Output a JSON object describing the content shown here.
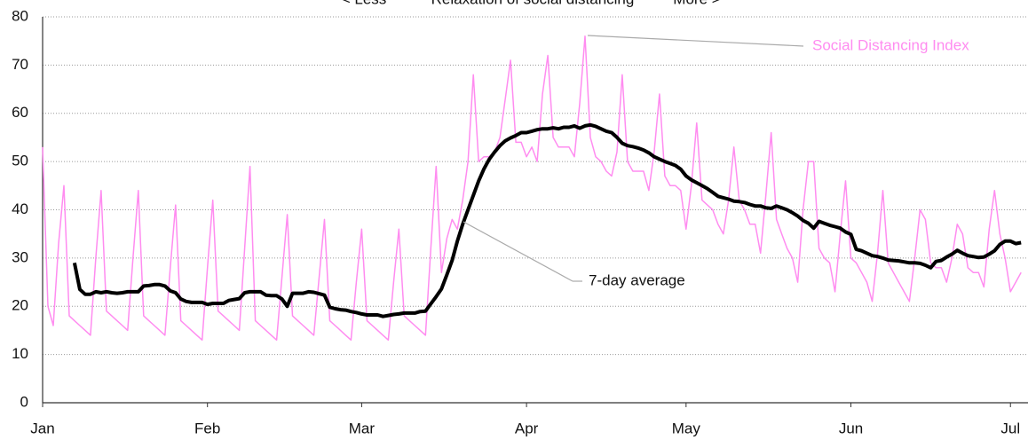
{
  "chart_data": {
    "type": "line",
    "header_annotations": [
      "< Less",
      "Relaxation of social distancing",
      "More >"
    ],
    "x": [
      0,
      1,
      2,
      3,
      4,
      5,
      6,
      7,
      8,
      9,
      10,
      11,
      12,
      13,
      14,
      15,
      16,
      17,
      18,
      19,
      20,
      21,
      22,
      23,
      24,
      25,
      26,
      27,
      28,
      29,
      30,
      31,
      32,
      33,
      34,
      35,
      36,
      37,
      38,
      39,
      40,
      41,
      42,
      43,
      44,
      45,
      46,
      47,
      48,
      49,
      50,
      51,
      52,
      53,
      54,
      55,
      56,
      57,
      58,
      59,
      60,
      61,
      62,
      63,
      64,
      65,
      66,
      67,
      68,
      69,
      70,
      71,
      72,
      73,
      74,
      75,
      76,
      77,
      78,
      79,
      80,
      81,
      82,
      83,
      84,
      85,
      86,
      87,
      88,
      89,
      90,
      91,
      92,
      93,
      94,
      95,
      96,
      97,
      98,
      99,
      100,
      101,
      102,
      103,
      104,
      105,
      106,
      107,
      108,
      109,
      110,
      111,
      112,
      113,
      114,
      115,
      116,
      117,
      118,
      119,
      120,
      121,
      122,
      123,
      124,
      125,
      126,
      127,
      128,
      129,
      130,
      131,
      132,
      133,
      134,
      135,
      136,
      137,
      138,
      139,
      140,
      141,
      142,
      143,
      144,
      145,
      146,
      147,
      148,
      149,
      150,
      151,
      152,
      153,
      154,
      155,
      156,
      157,
      158,
      159,
      160,
      161,
      162,
      163,
      164,
      165,
      166,
      167,
      168,
      169,
      170,
      171,
      172,
      173,
      174,
      175,
      176,
      177,
      178,
      179,
      180,
      181,
      182,
      183,
      184
    ],
    "series": [
      {
        "name": "Social Distancing Index",
        "color": "#ff8cf0",
        "width": 1.5,
        "values": [
          53,
          20,
          16,
          33,
          45,
          18,
          17,
          16,
          15,
          14,
          30,
          44,
          19,
          18,
          17,
          16,
          15,
          30,
          44,
          18,
          17,
          16,
          15,
          14,
          28,
          41,
          17,
          16,
          15,
          14,
          13,
          28,
          42,
          19,
          18,
          17,
          16,
          15,
          32,
          49,
          17,
          16,
          15,
          14,
          13,
          26,
          39,
          18,
          17,
          16,
          15,
          14,
          26,
          38,
          17,
          16,
          15,
          14,
          13,
          25,
          36,
          17,
          16,
          15,
          14,
          13,
          25,
          36,
          18,
          17,
          16,
          15,
          14,
          32,
          49,
          27,
          34,
          38,
          36,
          42,
          50,
          68,
          50,
          51,
          51,
          52,
          55,
          63,
          71,
          54,
          54,
          51,
          53,
          50,
          64,
          72,
          55,
          53,
          53,
          53,
          51,
          62,
          76,
          55,
          51,
          50,
          48,
          47,
          52,
          68,
          50,
          48,
          48,
          48,
          44,
          52,
          64,
          47,
          45,
          45,
          44,
          36,
          45,
          58,
          42,
          41,
          40,
          37,
          35,
          42,
          53,
          42,
          40,
          37,
          37,
          31,
          43,
          56,
          38,
          35,
          32,
          30,
          25,
          40,
          50,
          50,
          32,
          30,
          29,
          23,
          35,
          46,
          30,
          29,
          27,
          25,
          21,
          31,
          44,
          29,
          27,
          25,
          23,
          21,
          30,
          40,
          38,
          29,
          28,
          28,
          25,
          30,
          37,
          35,
          28,
          27,
          27,
          24,
          36,
          44,
          35,
          30,
          23,
          25,
          27
        ]
      },
      {
        "name": "7-day average",
        "color": "#000000",
        "width": 4,
        "values": [
          null,
          null,
          null,
          null,
          null,
          null,
          29,
          23.5,
          22.5,
          22.5,
          23,
          22.8,
          23,
          22.8,
          22.7,
          22.8,
          23,
          23,
          23,
          24.2,
          24.3,
          24.5,
          24.5,
          24.2,
          23.2,
          22.8,
          21.5,
          21,
          20.8,
          20.8,
          20.8,
          20.4,
          20.6,
          20.6,
          20.6,
          21.2,
          21.4,
          21.6,
          22.8,
          23,
          23,
          23,
          22.3,
          22.2,
          22.2,
          21.5,
          20,
          22.7,
          22.7,
          22.7,
          23,
          22.9,
          22.6,
          22.3,
          19.8,
          19.5,
          19.3,
          19.2,
          18.9,
          18.7,
          18.4,
          18.2,
          18.2,
          18.2,
          17.9,
          18.1,
          18.3,
          18.4,
          18.6,
          18.6,
          18.6,
          18.9,
          19,
          20.5,
          22,
          23.6,
          26.5,
          29.5,
          33.5,
          37,
          40,
          43,
          46,
          48.5,
          50.5,
          52,
          53.3,
          54.3,
          54.9,
          55.4,
          56,
          56,
          56.3,
          56.6,
          56.8,
          56.8,
          57,
          56.8,
          57.1,
          57.1,
          57.4,
          56.9,
          57.4,
          57.6,
          57.3,
          56.8,
          56.3,
          56,
          55,
          53.8,
          53.3,
          53.1,
          52.8,
          52.4,
          51.8,
          51,
          50.5,
          50,
          49.6,
          49.2,
          48.4,
          47,
          46.2,
          45.6,
          45,
          44.4,
          43.6,
          42.8,
          42.5,
          42.2,
          41.8,
          41.7,
          41.5,
          41.1,
          40.8,
          40.8,
          40.4,
          40.3,
          40.8,
          40.4,
          40,
          39.4,
          38.7,
          37.8,
          37.2,
          36.2,
          37.6,
          37.2,
          36.8,
          36.5,
          36.2,
          35.4,
          34.9,
          31.8,
          31.5,
          31,
          30.5,
          30.3,
          30,
          29.6,
          29.5,
          29.4,
          29.2,
          29,
          29,
          28.9,
          28.5,
          28,
          29.3,
          29.5,
          30.2,
          30.8,
          31.6,
          31,
          30.5,
          30.3,
          30.1,
          30.2,
          30.8,
          31.5,
          32.8,
          33.5,
          33.5,
          33,
          33.2
        ]
      }
    ],
    "xlim": [
      0,
      185.3
    ],
    "xticks": [
      {
        "value": 0,
        "label": "Jan"
      },
      {
        "value": 31,
        "label": "Feb"
      },
      {
        "value": 60,
        "label": "Mar"
      },
      {
        "value": 91,
        "label": "Apr"
      },
      {
        "value": 121,
        "label": "May"
      },
      {
        "value": 152,
        "label": "Jun"
      },
      {
        "value": 182,
        "label": "Jul"
      }
    ],
    "ylim": [
      0,
      80
    ],
    "yticks": [
      0,
      10,
      20,
      30,
      40,
      50,
      60,
      70,
      80
    ],
    "grid": true
  }
}
